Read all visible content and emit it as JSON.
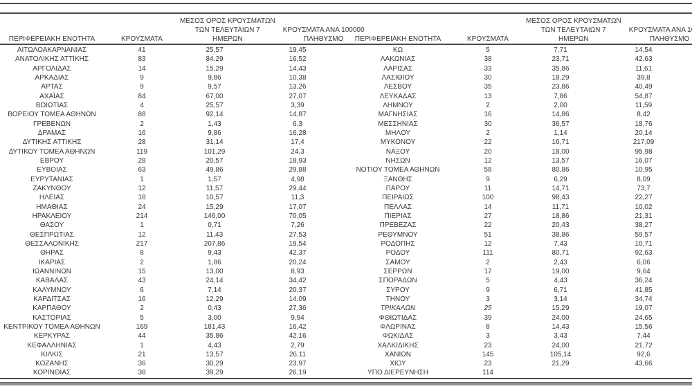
{
  "table": {
    "headers": {
      "region": "ΠΕΡΙΦΕΡΕΙΑΚΗ ΕΝΟΤΗΤΑ",
      "cases": "ΚΡΟΥΣΜΑΤΑ",
      "avg7_lines": [
        "ΜΕΣΟΣ ΟΡΟΣ ΚΡΟΥΣΜΑΤΩΝ",
        "ΤΩΝ ΤΕΛΕΥΤΑΙΩΝ 7",
        "ΗΜΕΡΩΝ"
      ],
      "per100k_lines": [
        "ΚΡΟΥΣΜΑΤΑ ΑΝΑ 100000",
        "ΠΛΗΘΥΣΜΟ"
      ]
    },
    "left": {
      "italic_row_indexes": [],
      "rows": [
        [
          "ΑΙΤΩΛΟΑΚΑΡΝΑΝΙΑΣ",
          "41",
          "25,57",
          "19,45"
        ],
        [
          "ΑΝΑΤΟΛΙΚΗΣ ΑΤΤΙΚΗΣ",
          "83",
          "84,29",
          "16,52"
        ],
        [
          "ΑΡΓΟΛΙΔΑΣ",
          "14",
          "15,29",
          "14,43"
        ],
        [
          "ΑΡΚΑΔΙΑΣ",
          "9",
          "9,86",
          "10,38"
        ],
        [
          "ΑΡΤΑΣ",
          "9",
          "9,57",
          "13,26"
        ],
        [
          "ΑΧΑΪΑΣ",
          "84",
          "67,00",
          "27,07"
        ],
        [
          "ΒΟΙΩΤΙΑΣ",
          "4",
          "25,57",
          "3,39"
        ],
        [
          "ΒΟΡΕΙΟΥ ΤΟΜΕΑ ΑΘΗΝΩΝ",
          "88",
          "92,14",
          "14,87"
        ],
        [
          "ΓΡΕΒΕΝΩΝ",
          "2",
          "1,43",
          "6,3"
        ],
        [
          "ΔΡΑΜΑΣ",
          "16",
          "9,86",
          "16,28"
        ],
        [
          "ΔΥΤΙΚΗΣ ΑΤΤΙΚΗΣ",
          "28",
          "31,14",
          "17,4"
        ],
        [
          "ΔΥΤΙΚΟΥ ΤΟΜΕΑ ΑΘΗΝΩΝ",
          "119",
          "101,29",
          "24,3"
        ],
        [
          "ΕΒΡΟΥ",
          "28",
          "20,57",
          "18,93"
        ],
        [
          "ΕΥΒΟΙΑΣ",
          "63",
          "49,86",
          "29,88"
        ],
        [
          "ΕΥΡΥΤΑΝΙΑΣ",
          "1",
          "1,57",
          "4,98"
        ],
        [
          "ΖΑΚΥΝΘΟΥ",
          "12",
          "11,57",
          "29,44"
        ],
        [
          "ΗΛΕΙΑΣ",
          "18",
          "10,57",
          "11,3"
        ],
        [
          "ΗΜΑΘΙΑΣ",
          "24",
          "15,29",
          "17,07"
        ],
        [
          "ΗΡΑΚΛΕΙΟΥ",
          "214",
          "146,00",
          "70,05"
        ],
        [
          "ΘΑΣΟΥ",
          "1",
          "0,71",
          "7,26"
        ],
        [
          "ΘΕΣΠΡΩΤΙΑΣ",
          "12",
          "11,43",
          "27,53"
        ],
        [
          "ΘΕΣΣΑΛΟΝΙΚΗΣ",
          "217",
          "207,86",
          "19,54"
        ],
        [
          "ΘΗΡΑΣ",
          "8",
          "9,43",
          "42,37"
        ],
        [
          "ΙΚΑΡΙΑΣ",
          "2",
          "1,86",
          "20,24"
        ],
        [
          "ΙΩΑΝΝΙΝΩΝ",
          "15",
          "13,00",
          "8,93"
        ],
        [
          "ΚΑΒΑΛΑΣ",
          "43",
          "24,14",
          "34,42"
        ],
        [
          "ΚΑΛΥΜΝΟΥ",
          "6",
          "7,14",
          "20,37"
        ],
        [
          "ΚΑΡΔΙΤΣΑΣ",
          "16",
          "12,29",
          "14,09"
        ],
        [
          "ΚΑΡΠΑΘΟΥ",
          "2",
          "0,43",
          "27,36"
        ],
        [
          "ΚΑΣΤΟΡΙΑΣ",
          "5",
          "3,00",
          "9,94"
        ],
        [
          "ΚΕΝΤΡΙΚΟΥ ΤΟΜΕΑ ΑΘΗΝΩΝ",
          "169",
          "181,43",
          "16,42"
        ],
        [
          "ΚΕΡΚΥΡΑΣ",
          "44",
          "35,86",
          "42,16"
        ],
        [
          "ΚΕΦΑΛΛΗΝΙΑΣ",
          "1",
          "4,43",
          "2,79"
        ],
        [
          "ΚΙΛΚΙΣ",
          "21",
          "13,57",
          "26,11"
        ],
        [
          "ΚΟΖΑΝΗΣ",
          "36",
          "30,29",
          "23,97"
        ],
        [
          "ΚΟΡΙΝΘΙΑΣ",
          "38",
          "39,29",
          "26,19"
        ]
      ]
    },
    "right": {
      "italic_row_indexes": [
        28
      ],
      "rows": [
        [
          "ΚΩ",
          "5",
          "7,71",
          "14,54"
        ],
        [
          "ΛΑΚΩΝΙΑΣ",
          "38",
          "23,71",
          "42,63"
        ],
        [
          "ΛΑΡΙΣΑΣ",
          "33",
          "35,86",
          "11,61"
        ],
        [
          "ΛΑΣΙΘΙΟΥ",
          "30",
          "18,29",
          "39,8"
        ],
        [
          "ΛΕΣΒΟΥ",
          "35",
          "23,86",
          "40,49"
        ],
        [
          "ΛΕΥΚΑΔΑΣ",
          "13",
          "7,86",
          "54,87"
        ],
        [
          "ΛΗΜΝΟΥ",
          "2",
          "2,00",
          "11,59"
        ],
        [
          "ΜΑΓΝΗΣΙΑΣ",
          "16",
          "14,86",
          "8,42"
        ],
        [
          "ΜΕΣΣΗΝΙΑΣ",
          "30",
          "36,57",
          "18,76"
        ],
        [
          "ΜΗΛΟΥ",
          "2",
          "1,14",
          "20,14"
        ],
        [
          "ΜΥΚΟΝΟΥ",
          "22",
          "16,71",
          "217,09"
        ],
        [
          "ΝΑΞΟΥ",
          "20",
          "18,00",
          "95,98"
        ],
        [
          "ΝΗΣΩΝ",
          "12",
          "13,57",
          "16,07"
        ],
        [
          "ΝΟΤΙΟΥ ΤΟΜΕΑ ΑΘΗΝΩΝ",
          "58",
          "80,86",
          "10,95"
        ],
        [
          "ΞΑΝΘΗΣ",
          "9",
          "6,29",
          "8,09"
        ],
        [
          "ΠΑΡΟΥ",
          "11",
          "14,71",
          "73,7"
        ],
        [
          "ΠΕΙΡΑΙΩΣ",
          "100",
          "98,43",
          "22,27"
        ],
        [
          "ΠΕΛΛΑΣ",
          "14",
          "11,71",
          "10,02"
        ],
        [
          "ΠΙΕΡΙΑΣ",
          "27",
          "18,86",
          "21,31"
        ],
        [
          "ΠΡΕΒΕΖΑΣ",
          "22",
          "20,43",
          "38,27"
        ],
        [
          "ΡΕΘΥΜΝΟΥ",
          "51",
          "38,86",
          "59,57"
        ],
        [
          "ΡΟΔΟΠΗΣ",
          "12",
          "7,43",
          "10,71"
        ],
        [
          "ΡΟΔΟΥ",
          "111",
          "80,71",
          "92,63"
        ],
        [
          "ΣΑΜΟΥ",
          "2",
          "2,43",
          "6,06"
        ],
        [
          "ΣΕΡΡΩΝ",
          "17",
          "19,00",
          "9,64"
        ],
        [
          "ΣΠΟΡΑΔΩΝ",
          "5",
          "4,43",
          "36,24"
        ],
        [
          "ΣΥΡΟΥ",
          "9",
          "6,71",
          "41,85"
        ],
        [
          "ΤΗΝΟΥ",
          "3",
          "3,14",
          "34,74"
        ],
        [
          "ΤΡΙΚΑΛΩΝ",
          "25",
          "15,29",
          "19,07"
        ],
        [
          "ΦΘΙΩΤΙΔΑΣ",
          "39",
          "24,00",
          "24,65"
        ],
        [
          "ΦΛΩΡΙΝΑΣ",
          "8",
          "14,43",
          "15,56"
        ],
        [
          "ΦΩΚΙΔΑΣ",
          "3",
          "3,43",
          "7,44"
        ],
        [
          "ΧΑΛΚΙΔΙΚΗΣ",
          "23",
          "24,00",
          "21,72"
        ],
        [
          "ΧΑΝΙΩΝ",
          "145",
          "105,14",
          "92,6"
        ],
        [
          "ΧΙΟΥ",
          "23",
          "21,29",
          "43,66"
        ],
        [
          "ΥΠΟ ΔΙΕΡΕΥΝΗΣΗ",
          "114",
          "",
          ""
        ]
      ]
    }
  },
  "colors": {
    "rule": "#4a4a4a",
    "text": "#383838",
    "bottom_bar": "#909090"
  }
}
